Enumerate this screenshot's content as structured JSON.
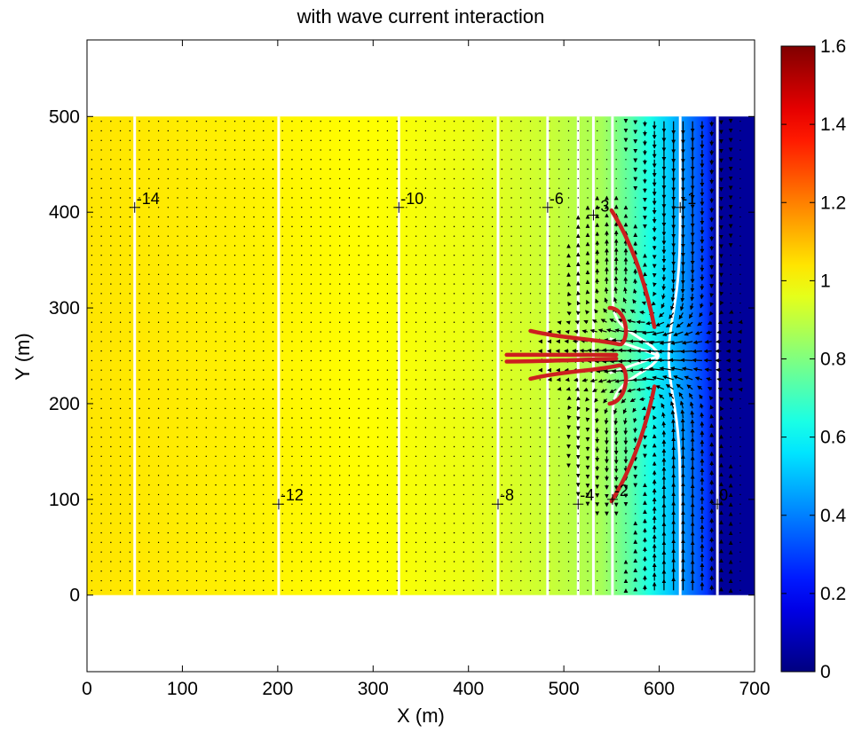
{
  "chart_data": {
    "type": "heatmap",
    "title": "with wave current interaction",
    "xlabel": "X (m)",
    "ylabel": "Y (m)",
    "xlim": [
      0,
      700
    ],
    "ylim": [
      -80,
      580
    ],
    "xticks": [
      0,
      100,
      200,
      300,
      400,
      500,
      600,
      700
    ],
    "yticks": [
      0,
      100,
      200,
      300,
      400,
      500
    ],
    "domain": {
      "x": [
        0,
        700
      ],
      "y": [
        0,
        500
      ]
    },
    "colorbar": {
      "colormap": "jet",
      "range": [
        0,
        1.6
      ],
      "ticks": [
        0,
        0.2,
        0.4,
        0.6,
        0.8,
        1,
        1.2,
        1.4,
        1.6
      ]
    },
    "field_profile": {
      "x": [
        0,
        100,
        300,
        400,
        480,
        540,
        570,
        590,
        610,
        630,
        650,
        660,
        700
      ],
      "value": [
        1.04,
        1.03,
        1.0,
        0.97,
        0.92,
        0.86,
        0.74,
        0.64,
        0.52,
        0.4,
        0.28,
        0.04,
        0.04
      ]
    },
    "depth_contours": [
      {
        "label": "-14",
        "x": 50,
        "label_x": 50,
        "label_y": 405
      },
      {
        "label": "-12",
        "x": 201,
        "label_x": 201,
        "label_y": 95
      },
      {
        "label": "-10",
        "x": 327,
        "label_x": 327,
        "label_y": 405
      },
      {
        "label": "-8",
        "x": 431,
        "label_x": 431,
        "label_y": 95
      },
      {
        "label": "-6",
        "x": 483,
        "label_x": 483,
        "label_y": 405
      },
      {
        "label": "-4",
        "x": 515,
        "label_x": 515,
        "label_y": 95
      },
      {
        "label": "-3",
        "x": 531,
        "label_x": 531,
        "label_y": 397
      },
      {
        "label": "-2",
        "x": 551,
        "label_x": 551,
        "label_y": 100
      },
      {
        "label": "-1",
        "x": 622,
        "label_x": 622,
        "label_y": 405
      },
      {
        "label": "0",
        "x": 661,
        "label_x": 661,
        "label_y": 95
      }
    ],
    "channel": {
      "y_center": 250,
      "x_start": 550,
      "x_end": 600
    },
    "colors": {
      "contour": "#ffffff",
      "streamline": "#cc1f1f",
      "vector": "#000000"
    }
  }
}
